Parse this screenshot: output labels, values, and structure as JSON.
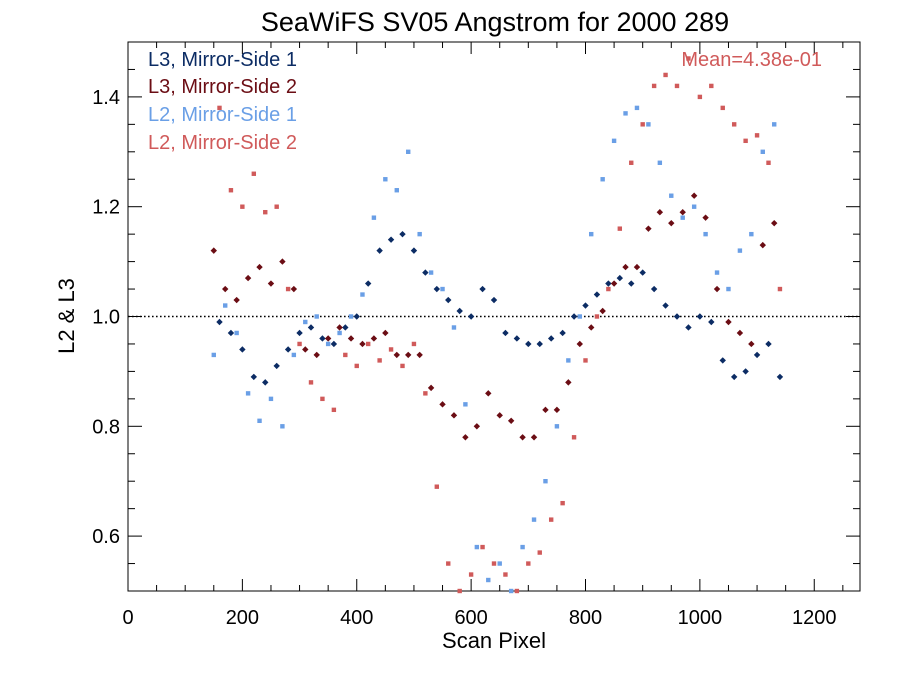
{
  "chart_data": {
    "type": "scatter",
    "title": "SeaWiFS SV05 Angstrom for 2000 289",
    "xlabel": "Scan Pixel",
    "ylabel": "L2 & L3",
    "xlim": [
      0,
      1280
    ],
    "ylim": [
      0.5,
      1.5
    ],
    "xticks": [
      0,
      200,
      400,
      600,
      800,
      1000,
      1200
    ],
    "xtick_labels": [
      "0",
      "200",
      "400",
      "600",
      "800",
      "1000",
      "1200"
    ],
    "yticks": [
      0.6,
      0.8,
      1.0,
      1.2,
      1.4
    ],
    "ytick_labels": [
      "0.6",
      "0.8",
      "1.0",
      "1.2",
      "1.4"
    ],
    "reference_line": 1.0,
    "annotation": "Mean=4.38e-01",
    "annotation_color": "#d05a5a",
    "legend_position": "top-left",
    "series": [
      {
        "name": "L3, Mirror-Side 1",
        "color": "#0c2c64",
        "marker": "diamond",
        "points": [
          [
            160,
            0.99
          ],
          [
            180,
            0.97
          ],
          [
            200,
            0.94
          ],
          [
            220,
            0.89
          ],
          [
            240,
            0.88
          ],
          [
            260,
            0.91
          ],
          [
            280,
            0.94
          ],
          [
            300,
            0.97
          ],
          [
            320,
            0.98
          ],
          [
            340,
            0.96
          ],
          [
            360,
            0.95
          ],
          [
            380,
            0.98
          ],
          [
            400,
            1.0
          ],
          [
            420,
            1.06
          ],
          [
            440,
            1.12
          ],
          [
            460,
            1.14
          ],
          [
            480,
            1.15
          ],
          [
            500,
            1.12
          ],
          [
            520,
            1.08
          ],
          [
            540,
            1.05
          ],
          [
            560,
            1.03
          ],
          [
            580,
            1.01
          ],
          [
            600,
            1.0
          ],
          [
            620,
            1.05
          ],
          [
            640,
            1.03
          ],
          [
            660,
            0.97
          ],
          [
            680,
            0.96
          ],
          [
            700,
            0.95
          ],
          [
            720,
            0.95
          ],
          [
            740,
            0.96
          ],
          [
            760,
            0.97
          ],
          [
            780,
            1.0
          ],
          [
            800,
            1.02
          ],
          [
            820,
            1.04
          ],
          [
            840,
            1.06
          ],
          [
            860,
            1.07
          ],
          [
            880,
            1.06
          ],
          [
            900,
            1.08
          ],
          [
            920,
            1.05
          ],
          [
            940,
            1.02
          ],
          [
            960,
            1.0
          ],
          [
            980,
            0.98
          ],
          [
            1000,
            1.0
          ],
          [
            1020,
            0.99
          ],
          [
            1040,
            0.92
          ],
          [
            1060,
            0.89
          ],
          [
            1080,
            0.9
          ],
          [
            1100,
            0.93
          ],
          [
            1120,
            0.95
          ],
          [
            1140,
            0.89
          ]
        ]
      },
      {
        "name": "L3, Mirror-Side 2",
        "color": "#6b0d14",
        "marker": "diamond",
        "points": [
          [
            150,
            1.12
          ],
          [
            170,
            1.05
          ],
          [
            190,
            1.03
          ],
          [
            210,
            1.07
          ],
          [
            230,
            1.09
          ],
          [
            250,
            1.06
          ],
          [
            270,
            1.1
          ],
          [
            290,
            1.05
          ],
          [
            310,
            0.94
          ],
          [
            330,
            0.93
          ],
          [
            350,
            0.96
          ],
          [
            370,
            0.98
          ],
          [
            390,
            0.96
          ],
          [
            410,
            0.95
          ],
          [
            430,
            0.96
          ],
          [
            450,
            0.97
          ],
          [
            470,
            0.93
          ],
          [
            490,
            0.93
          ],
          [
            510,
            0.93
          ],
          [
            530,
            0.87
          ],
          [
            550,
            0.84
          ],
          [
            570,
            0.82
          ],
          [
            590,
            0.78
          ],
          [
            610,
            0.8
          ],
          [
            630,
            0.86
          ],
          [
            650,
            0.82
          ],
          [
            670,
            0.81
          ],
          [
            690,
            0.78
          ],
          [
            710,
            0.78
          ],
          [
            730,
            0.83
          ],
          [
            750,
            0.83
          ],
          [
            770,
            0.88
          ],
          [
            790,
            0.95
          ],
          [
            810,
            0.98
          ],
          [
            830,
            1.01
          ],
          [
            850,
            1.06
          ],
          [
            870,
            1.09
          ],
          [
            890,
            1.09
          ],
          [
            910,
            1.16
          ],
          [
            930,
            1.19
          ],
          [
            950,
            1.17
          ],
          [
            970,
            1.19
          ],
          [
            990,
            1.22
          ],
          [
            1010,
            1.18
          ],
          [
            1030,
            1.05
          ],
          [
            1050,
            0.99
          ],
          [
            1070,
            0.97
          ],
          [
            1090,
            0.95
          ],
          [
            1110,
            1.13
          ],
          [
            1130,
            1.17
          ]
        ]
      },
      {
        "name": "L2, Mirror-Side 1",
        "color": "#6a9fe6",
        "marker": "square",
        "points": [
          [
            150,
            0.93
          ],
          [
            170,
            1.02
          ],
          [
            190,
            0.97
          ],
          [
            210,
            0.86
          ],
          [
            230,
            0.81
          ],
          [
            250,
            0.85
          ],
          [
            270,
            0.8
          ],
          [
            290,
            0.93
          ],
          [
            310,
            0.99
          ],
          [
            330,
            1.0
          ],
          [
            350,
            0.95
          ],
          [
            370,
            0.97
          ],
          [
            390,
            1.0
          ],
          [
            410,
            1.04
          ],
          [
            430,
            1.18
          ],
          [
            450,
            1.25
          ],
          [
            470,
            1.23
          ],
          [
            490,
            1.3
          ],
          [
            510,
            1.15
          ],
          [
            530,
            1.08
          ],
          [
            550,
            1.05
          ],
          [
            570,
            0.98
          ],
          [
            590,
            0.84
          ],
          [
            610,
            0.58
          ],
          [
            630,
            0.52
          ],
          [
            650,
            0.55
          ],
          [
            670,
            0.5
          ],
          [
            690,
            0.58
          ],
          [
            710,
            0.63
          ],
          [
            730,
            0.7
          ],
          [
            750,
            0.8
          ],
          [
            770,
            0.92
          ],
          [
            790,
            1.0
          ],
          [
            810,
            1.15
          ],
          [
            830,
            1.25
          ],
          [
            850,
            1.32
          ],
          [
            870,
            1.37
          ],
          [
            890,
            1.38
          ],
          [
            910,
            1.35
          ],
          [
            930,
            1.28
          ],
          [
            950,
            1.22
          ],
          [
            970,
            1.18
          ],
          [
            990,
            1.2
          ],
          [
            1010,
            1.15
          ],
          [
            1030,
            1.08
          ],
          [
            1050,
            1.05
          ],
          [
            1070,
            1.12
          ],
          [
            1090,
            1.15
          ],
          [
            1110,
            1.3
          ],
          [
            1130,
            1.35
          ]
        ]
      },
      {
        "name": "L2, Mirror-Side 2",
        "color": "#d05a5a",
        "marker": "square",
        "points": [
          [
            160,
            1.38
          ],
          [
            180,
            1.23
          ],
          [
            200,
            1.2
          ],
          [
            220,
            1.26
          ],
          [
            240,
            1.19
          ],
          [
            260,
            1.2
          ],
          [
            280,
            1.05
          ],
          [
            300,
            0.95
          ],
          [
            320,
            0.88
          ],
          [
            340,
            0.85
          ],
          [
            360,
            0.83
          ],
          [
            380,
            0.93
          ],
          [
            400,
            0.91
          ],
          [
            420,
            0.95
          ],
          [
            440,
            0.92
          ],
          [
            460,
            0.94
          ],
          [
            480,
            0.91
          ],
          [
            500,
            0.95
          ],
          [
            520,
            0.86
          ],
          [
            540,
            0.69
          ],
          [
            560,
            0.55
          ],
          [
            580,
            0.5
          ],
          [
            600,
            0.53
          ],
          [
            620,
            0.58
          ],
          [
            640,
            0.55
          ],
          [
            660,
            0.53
          ],
          [
            680,
            0.5
          ],
          [
            700,
            0.55
          ],
          [
            720,
            0.57
          ],
          [
            740,
            0.63
          ],
          [
            760,
            0.66
          ],
          [
            780,
            0.78
          ],
          [
            800,
            0.92
          ],
          [
            820,
            1.0
          ],
          [
            840,
            1.05
          ],
          [
            860,
            1.16
          ],
          [
            880,
            1.28
          ],
          [
            900,
            1.35
          ],
          [
            920,
            1.42
          ],
          [
            940,
            1.44
          ],
          [
            960,
            1.42
          ],
          [
            980,
            1.47
          ],
          [
            1000,
            1.4
          ],
          [
            1020,
            1.42
          ],
          [
            1040,
            1.38
          ],
          [
            1060,
            1.35
          ],
          [
            1080,
            1.32
          ],
          [
            1100,
            1.33
          ],
          [
            1120,
            1.28
          ],
          [
            1140,
            1.05
          ]
        ]
      }
    ]
  }
}
